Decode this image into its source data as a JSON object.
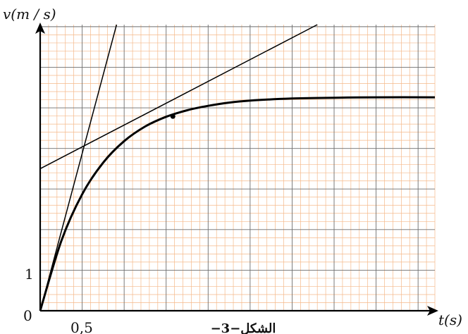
{
  "chart_data": {
    "type": "line",
    "xlabel": "t(s)",
    "ylabel": "v(m / s)",
    "x_ticks": [
      {
        "value": 0.5,
        "label": "0,5"
      }
    ],
    "y_ticks": [
      {
        "value": 1,
        "label": "1"
      }
    ],
    "origin_label": "0",
    "caption": "الشكل−3−",
    "xlim": [
      0,
      4.7
    ],
    "ylim": [
      0,
      7.05
    ],
    "grid": true,
    "colors": {
      "grid_minor": "#f5b98a",
      "grid_major": "#6e6e6e",
      "curve": "#000000"
    },
    "series": [
      {
        "role": "curve",
        "x": [
          0,
          0.25,
          0.5,
          0.75,
          1.0,
          1.25,
          1.5,
          1.75,
          2.0,
          2.25,
          2.5,
          3.0,
          3.5,
          4.0,
          4.7
        ],
        "y": [
          0,
          1.71,
          2.87,
          3.65,
          4.18,
          4.54,
          4.78,
          4.94,
          5.05,
          5.13,
          5.18,
          5.23,
          5.25,
          5.26,
          5.26
        ]
      },
      {
        "role": "tangent-origin",
        "x": [
          0,
          0.91
        ],
        "y": [
          0,
          7.05
        ]
      },
      {
        "role": "tangent-point",
        "x": [
          0,
          3.3
        ],
        "y": [
          3.5,
          7.05
        ]
      }
    ],
    "annotations": [
      {
        "type": "point",
        "x": 1.58,
        "y": 4.79
      }
    ]
  }
}
